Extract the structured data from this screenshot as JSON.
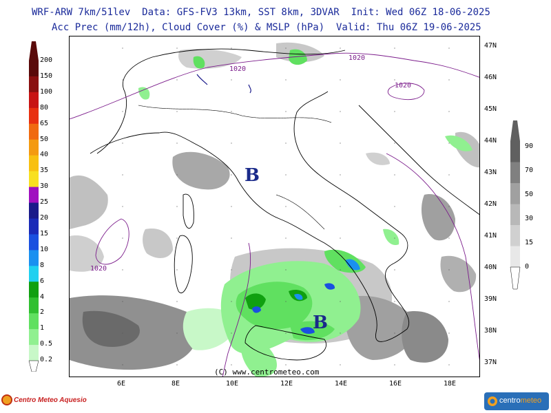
{
  "header": {
    "line1": "WRF-ARW 7km/51lev  Data: GFS-FV3 13km, SST 8km, 3DVAR  Init: Wed 06Z 18-06-2025",
    "line2": "Acc Prec (mm/12h), Cloud Cover (%) & MSLP (hPa)  Valid: Thu 06Z 19-06-2025"
  },
  "lat_labels": [
    "47N",
    "46N",
    "45N",
    "44N",
    "43N",
    "42N",
    "41N",
    "40N",
    "39N",
    "38N",
    "37N"
  ],
  "lon_labels": [
    "6E",
    "8E",
    "10E",
    "12E",
    "14E",
    "16E",
    "18E"
  ],
  "precip_legend": {
    "labels": [
      "200",
      "150",
      "100",
      "80",
      "65",
      "50",
      "40",
      "35",
      "30",
      "25",
      "20",
      "15",
      "10",
      "8",
      "6",
      "4",
      "2",
      "1",
      "0.5",
      "0.2"
    ],
    "colors": [
      "#5a0a0a",
      "#8a1010",
      "#c81414",
      "#e83010",
      "#f06a10",
      "#f49a10",
      "#f8c010",
      "#f8e020",
      "#a010c0",
      "#1a1a8a",
      "#1a2ab8",
      "#1a50e0",
      "#1a90f0",
      "#20d0f0",
      "#10a010",
      "#30c030",
      "#60e060",
      "#90f090",
      "#c8f8c8"
    ]
  },
  "cloud_legend": {
    "labels": [
      "90",
      "70",
      "50",
      "30",
      "15",
      "0"
    ],
    "colors": [
      "#606060",
      "#808080",
      "#a0a0a0",
      "#b8b8b8",
      "#d0d0d0",
      "#e8e8e8"
    ]
  },
  "isobars": [
    "1020",
    "1020",
    "1020",
    "1020"
  ],
  "pressure_centers": [
    "B",
    "B"
  ],
  "credit": "(C) www.centrometeo.com",
  "logo_left": "Centro Meteo Aquesio",
  "logo_right": {
    "a": "centro",
    "b": "meteo"
  }
}
